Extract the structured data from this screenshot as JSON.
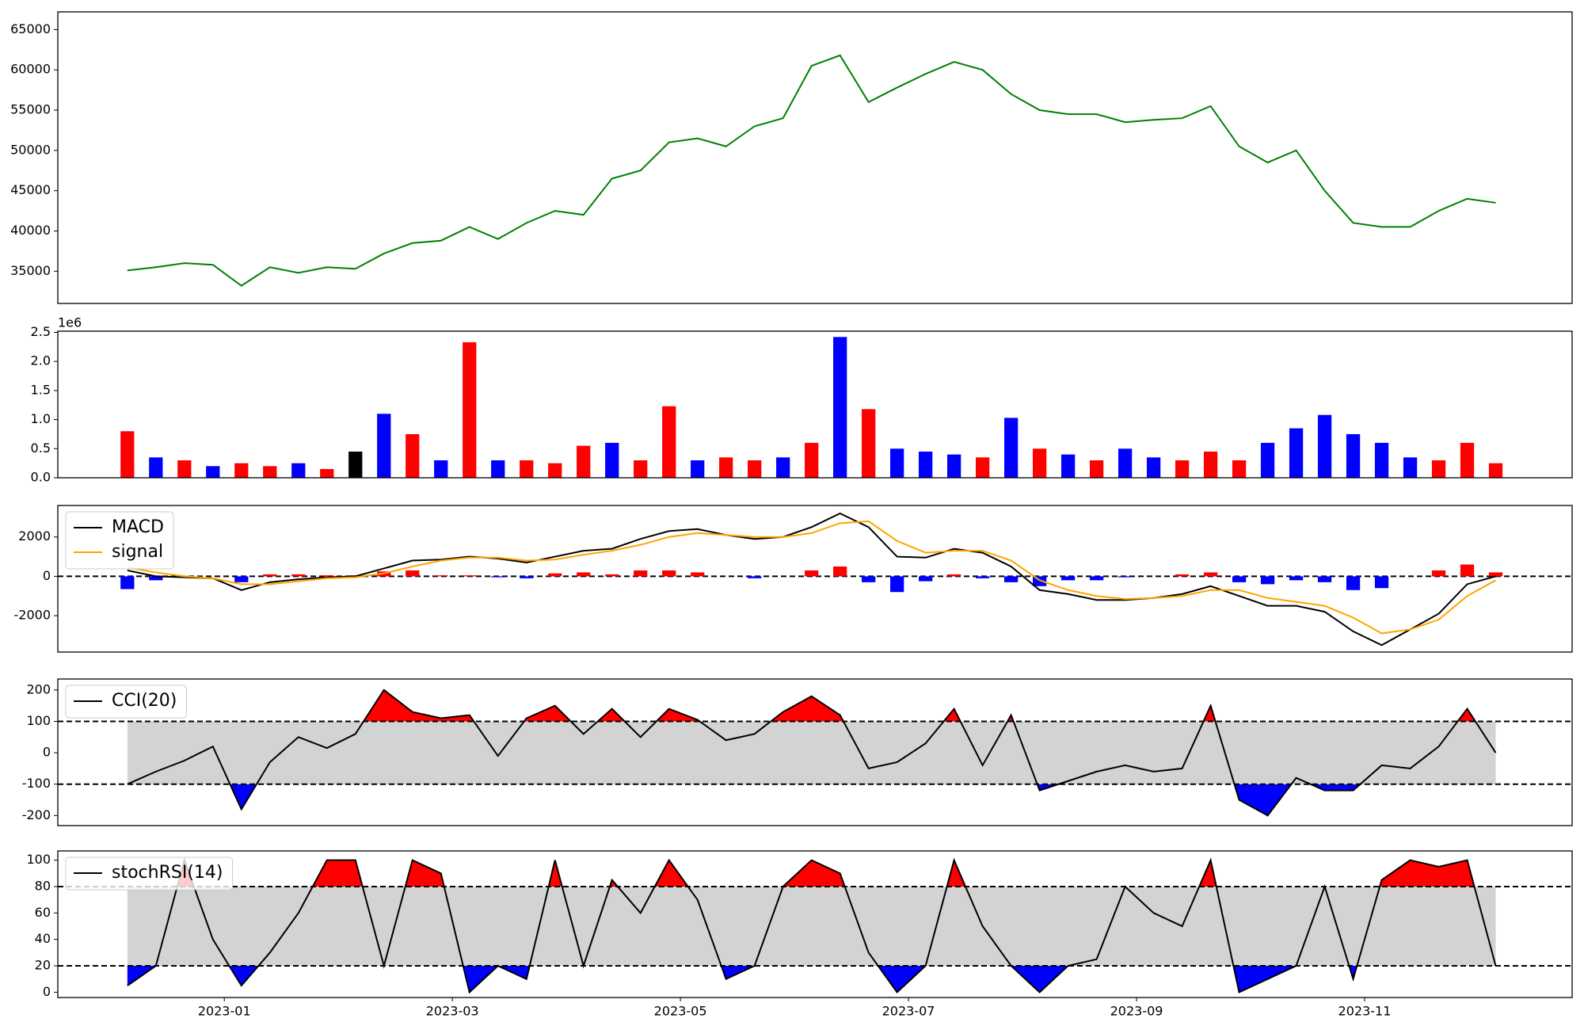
{
  "chart_data": [
    {
      "type": "line",
      "color": "green",
      "x": [
        0.15,
        0.4,
        0.65,
        0.9,
        1.15,
        1.4,
        1.65,
        1.9,
        2.15,
        2.4,
        2.65,
        2.9,
        3.15,
        3.4,
        3.65,
        3.9,
        4.15,
        4.4,
        4.65,
        4.9,
        5.15,
        5.4,
        5.65,
        5.9,
        6.15,
        6.4,
        6.65,
        6.9,
        7.15,
        7.4,
        7.65,
        7.9,
        8.15,
        8.4,
        8.65,
        8.9,
        9.15,
        9.4,
        9.65,
        9.9,
        10.15,
        10.4,
        10.65,
        10.9,
        11.15,
        11.4,
        11.65,
        11.9,
        12.15
      ],
      "values": [
        35100,
        35500,
        36000,
        35800,
        33200,
        35500,
        34800,
        35500,
        35300,
        37200,
        38500,
        38800,
        40500,
        39000,
        41000,
        42500,
        42000,
        46500,
        47500,
        51000,
        51500,
        50500,
        53000,
        54000,
        60500,
        61800,
        56000,
        57800,
        59500,
        61000,
        60000,
        57000,
        55000,
        54500,
        54500,
        53500,
        53800,
        54000,
        55500,
        50500,
        48500,
        50000,
        45000,
        41000,
        40500,
        40500,
        42500,
        44000,
        43500
      ],
      "xlim": [
        -0.46,
        12.82
      ],
      "ylim": [
        31000,
        67200
      ],
      "yticks": [
        35000,
        40000,
        45000,
        50000,
        55000,
        60000,
        65000
      ]
    },
    {
      "type": "bar",
      "offset_label": "1e6",
      "x": [
        0.15,
        0.4,
        0.65,
        0.9,
        1.15,
        1.4,
        1.65,
        1.9,
        2.15,
        2.4,
        2.65,
        2.9,
        3.15,
        3.4,
        3.65,
        3.9,
        4.15,
        4.4,
        4.65,
        4.9,
        5.15,
        5.4,
        5.65,
        5.9,
        6.15,
        6.4,
        6.65,
        6.9,
        7.15,
        7.4,
        7.65,
        7.9,
        8.15,
        8.4,
        8.65,
        8.9,
        9.15,
        9.4,
        9.65,
        9.9,
        10.15,
        10.4,
        10.65,
        10.9,
        11.15,
        11.4,
        11.65,
        11.9,
        12.15
      ],
      "values": [
        0.8,
        0.35,
        0.3,
        0.2,
        0.25,
        0.2,
        0.25,
        0.15,
        0.45,
        1.1,
        0.75,
        0.3,
        2.33,
        0.3,
        0.3,
        0.25,
        0.55,
        0.6,
        0.3,
        1.23,
        0.3,
        0.35,
        0.3,
        0.35,
        0.6,
        2.42,
        1.18,
        0.5,
        0.45,
        0.4,
        0.35,
        1.03,
        0.5,
        0.4,
        0.3,
        0.5,
        0.35,
        0.3,
        0.45,
        0.3,
        0.6,
        0.85,
        1.08,
        0.75,
        0.6,
        0.35,
        0.3,
        0.6,
        0.25
      ],
      "colors": [
        "red",
        "blue",
        "red",
        "blue",
        "red",
        "red",
        "blue",
        "red",
        "black",
        "blue",
        "red",
        "blue",
        "red",
        "blue",
        "red",
        "red",
        "red",
        "blue",
        "red",
        "red",
        "blue",
        "red",
        "red",
        "blue",
        "red",
        "blue",
        "red",
        "blue",
        "blue",
        "blue",
        "red",
        "blue",
        "red",
        "blue",
        "red",
        "blue",
        "blue",
        "red",
        "red",
        "red",
        "blue",
        "blue",
        "blue",
        "blue",
        "blue",
        "blue",
        "red",
        "red",
        "red"
      ],
      "xlim": [
        -0.46,
        12.82
      ],
      "ylim": [
        0,
        2.52
      ],
      "yticks": [
        {
          "value": 0,
          "label": "0.0"
        },
        0.5,
        {
          "value": 1,
          "label": "1.0"
        },
        1.5,
        {
          "value": 2,
          "label": "2.0"
        },
        2.5
      ]
    },
    {
      "type": "line",
      "legend": "upper left",
      "hlines": [
        0
      ],
      "x": [
        0.15,
        0.4,
        0.65,
        0.9,
        1.15,
        1.4,
        1.65,
        1.9,
        2.15,
        2.4,
        2.65,
        2.9,
        3.15,
        3.4,
        3.65,
        3.9,
        4.15,
        4.4,
        4.65,
        4.9,
        5.15,
        5.4,
        5.65,
        5.9,
        6.15,
        6.4,
        6.65,
        6.9,
        7.15,
        7.4,
        7.65,
        7.9,
        8.15,
        8.4,
        8.65,
        8.9,
        9.15,
        9.4,
        9.65,
        9.9,
        10.15,
        10.4,
        10.65,
        10.9,
        11.15,
        11.4,
        11.65,
        11.9,
        12.15
      ],
      "series": [
        {
          "name": "MACD",
          "color": "black",
          "values": [
            300,
            0,
            -50,
            -100,
            -700,
            -300,
            -150,
            -50,
            0,
            400,
            800,
            850,
            1000,
            900,
            700,
            1000,
            1300,
            1400,
            1900,
            2300,
            2400,
            2100,
            1900,
            2000,
            2500,
            3200,
            2500,
            1000,
            950,
            1400,
            1200,
            500,
            -700,
            -900,
            -1200,
            -1200,
            -1100,
            -900,
            -500,
            -1000,
            -1500,
            -1500,
            -1800,
            -2800,
            -3500,
            -2700,
            -1900,
            -400,
            0
          ]
        },
        {
          "name": "signal",
          "color": "orange",
          "values": [
            450,
            200,
            0,
            -100,
            -400,
            -400,
            -250,
            -100,
            -50,
            150,
            500,
            800,
            950,
            950,
            800,
            850,
            1100,
            1300,
            1600,
            2000,
            2200,
            2100,
            2000,
            2000,
            2200,
            2700,
            2800,
            1800,
            1200,
            1300,
            1300,
            800,
            -200,
            -700,
            -1000,
            -1150,
            -1100,
            -1000,
            -700,
            -700,
            -1100,
            -1300,
            -1500,
            -2100,
            -2900,
            -2700,
            -2200,
            -1000,
            -200
          ]
        }
      ],
      "bar_values": [
        -650,
        -200,
        -50,
        0,
        -300,
        100,
        100,
        50,
        50,
        250,
        300,
        50,
        50,
        -50,
        -100,
        150,
        200,
        100,
        300,
        300,
        200,
        0,
        -100,
        0,
        300,
        500,
        -300,
        -800,
        -250,
        100,
        -100,
        -300,
        -500,
        -200,
        -200,
        -50,
        0,
        100,
        200,
        -300,
        -400,
        -200,
        -300,
        -700,
        -600,
        0,
        300,
        600,
        200
      ],
      "bar_colors": {
        "positive": "red",
        "negative": "blue"
      },
      "xlim": [
        -0.46,
        12.82
      ],
      "ylim": [
        -3850,
        3600
      ],
      "yticks": [
        -2000,
        0,
        2000
      ]
    },
    {
      "type": "line",
      "legend": "upper left",
      "thresholds": [
        -100,
        100
      ],
      "band_color": "#d3d3d3",
      "upper_color": "red",
      "lower_color": "blue",
      "x": [
        0.15,
        0.4,
        0.65,
        0.9,
        1.15,
        1.4,
        1.65,
        1.9,
        2.15,
        2.4,
        2.65,
        2.9,
        3.15,
        3.4,
        3.65,
        3.9,
        4.15,
        4.4,
        4.65,
        4.9,
        5.15,
        5.4,
        5.65,
        5.9,
        6.15,
        6.4,
        6.65,
        6.9,
        7.15,
        7.4,
        7.65,
        7.9,
        8.15,
        8.4,
        8.65,
        8.9,
        9.15,
        9.4,
        9.65,
        9.9,
        10.15,
        10.4,
        10.65,
        10.9,
        11.15,
        11.4,
        11.65,
        11.9,
        12.15
      ],
      "series": [
        {
          "name": "CCI(20)",
          "color": "black",
          "values": [
            -100,
            -60,
            -25,
            20,
            -180,
            -30,
            50,
            15,
            60,
            200,
            130,
            110,
            120,
            -10,
            110,
            150,
            60,
            140,
            50,
            140,
            105,
            40,
            60,
            130,
            180,
            120,
            -50,
            -30,
            30,
            140,
            -40,
            120,
            -120,
            -90,
            -60,
            -40,
            -60,
            -50,
            150,
            -150,
            -200,
            -80,
            -120,
            -120,
            -40,
            -50,
            20,
            140,
            0
          ]
        }
      ],
      "xlim": [
        -0.46,
        12.82
      ],
      "ylim": [
        -232,
        235
      ],
      "yticks": [
        -200,
        -100,
        0,
        100,
        200
      ]
    },
    {
      "type": "line",
      "legend": "upper left",
      "thresholds": [
        20,
        80
      ],
      "band_color": "#d3d3d3",
      "upper_color": "red",
      "lower_color": "blue",
      "x": [
        0.15,
        0.4,
        0.65,
        0.9,
        1.15,
        1.4,
        1.65,
        1.9,
        2.15,
        2.4,
        2.65,
        2.9,
        3.15,
        3.4,
        3.65,
        3.9,
        4.15,
        4.4,
        4.65,
        4.9,
        5.15,
        5.4,
        5.65,
        5.9,
        6.15,
        6.4,
        6.65,
        6.9,
        7.15,
        7.4,
        7.65,
        7.9,
        8.15,
        8.4,
        8.65,
        8.9,
        9.15,
        9.4,
        9.65,
        9.9,
        10.15,
        10.4,
        10.65,
        10.9,
        11.15,
        11.4,
        11.65,
        11.9,
        12.15
      ],
      "series": [
        {
          "name": "stochRSI(14)",
          "color": "black",
          "values": [
            5,
            20,
            100,
            40,
            5,
            30,
            60,
            100,
            100,
            20,
            100,
            90,
            0,
            20,
            10,
            100,
            20,
            85,
            60,
            100,
            70,
            10,
            20,
            80,
            100,
            90,
            30,
            0,
            20,
            100,
            50,
            20,
            0,
            20,
            25,
            80,
            60,
            50,
            100,
            0,
            10,
            20,
            80,
            10,
            85,
            100,
            95,
            100,
            20
          ]
        }
      ],
      "xlim": [
        -0.46,
        12.82
      ],
      "ylim": [
        -4,
        107
      ],
      "yticks": [
        0,
        20,
        40,
        60,
        80,
        100
      ],
      "xticks": [
        {
          "value": 1,
          "label": "2023-01"
        },
        {
          "value": 3,
          "label": "2023-03"
        },
        {
          "value": 5,
          "label": "2023-05"
        },
        {
          "value": 7,
          "label": "2023-07"
        },
        {
          "value": 9,
          "label": "2023-09"
        },
        {
          "value": 11,
          "label": "2023-11"
        }
      ]
    }
  ]
}
